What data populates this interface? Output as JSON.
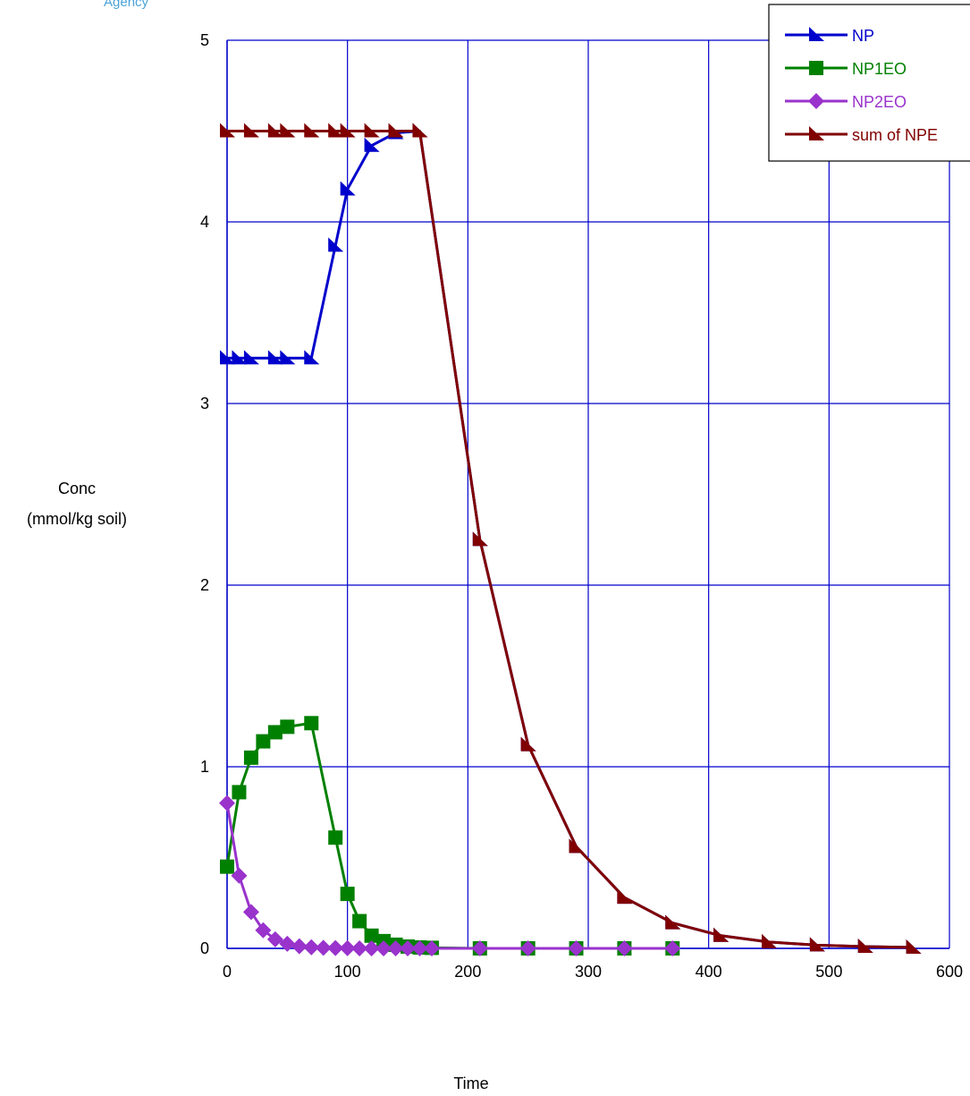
{
  "header": {
    "agency_text": "Agency"
  },
  "colors": {
    "NP": "#0000cc",
    "NP1EO": "#008000",
    "NP2EO": "#9933cc",
    "sum": "#800000",
    "grid": "#0000cc"
  },
  "chart_data": {
    "type": "line",
    "xlabel": "Time",
    "ylabel_lines": [
      "Conc",
      "(mmol/kg soil)"
    ],
    "xlim": [
      0,
      600
    ],
    "ylim": [
      0,
      5
    ],
    "x_ticks": [
      0,
      100,
      200,
      300,
      400,
      500,
      600
    ],
    "y_ticks": [
      0,
      1,
      2,
      3,
      4,
      5
    ],
    "grid": true,
    "legend_position": "top-right",
    "series": [
      {
        "name": "NP",
        "marker": "triangle",
        "color": "#0000cc",
        "points": [
          [
            0,
            3.25
          ],
          [
            10,
            3.25
          ],
          [
            20,
            3.25
          ],
          [
            40,
            3.25
          ],
          [
            50,
            3.25
          ],
          [
            70,
            3.25
          ],
          [
            90,
            3.87
          ],
          [
            100,
            4.18
          ],
          [
            120,
            4.42
          ],
          [
            140,
            4.49
          ],
          [
            160,
            4.5
          ],
          [
            210,
            2.25
          ],
          [
            250,
            1.12
          ],
          [
            290,
            0.56
          ],
          [
            330,
            0.28
          ],
          [
            370,
            0.14
          ],
          [
            410,
            0.07
          ],
          [
            450,
            0.035
          ],
          [
            490,
            0.018
          ],
          [
            530,
            0.01
          ],
          [
            570,
            0.005
          ]
        ]
      },
      {
        "name": "NP1EO",
        "marker": "square",
        "color": "#008000",
        "points": [
          [
            0,
            0.45
          ],
          [
            10,
            0.86
          ],
          [
            20,
            1.05
          ],
          [
            30,
            1.14
          ],
          [
            40,
            1.19
          ],
          [
            50,
            1.22
          ],
          [
            70,
            1.24
          ],
          [
            90,
            0.61
          ],
          [
            100,
            0.3
          ],
          [
            110,
            0.15
          ],
          [
            120,
            0.07
          ],
          [
            130,
            0.04
          ],
          [
            140,
            0.02
          ],
          [
            150,
            0.01
          ],
          [
            160,
            0.005
          ],
          [
            170,
            0.003
          ],
          [
            210,
            0
          ],
          [
            250,
            0
          ],
          [
            290,
            0
          ],
          [
            330,
            0
          ],
          [
            370,
            0
          ]
        ]
      },
      {
        "name": "NP2EO",
        "marker": "diamond",
        "color": "#9933cc",
        "points": [
          [
            0,
            0.8
          ],
          [
            10,
            0.4
          ],
          [
            20,
            0.2
          ],
          [
            30,
            0.1
          ],
          [
            40,
            0.05
          ],
          [
            50,
            0.025
          ],
          [
            60,
            0.012
          ],
          [
            70,
            0.006
          ],
          [
            80,
            0.003
          ],
          [
            90,
            0.002
          ],
          [
            100,
            0.001
          ],
          [
            110,
            0
          ],
          [
            120,
            0
          ],
          [
            130,
            0
          ],
          [
            140,
            0
          ],
          [
            150,
            0
          ],
          [
            160,
            0
          ],
          [
            170,
            0
          ],
          [
            210,
            0
          ],
          [
            250,
            0
          ],
          [
            290,
            0
          ],
          [
            330,
            0
          ],
          [
            370,
            0
          ]
        ]
      },
      {
        "name": "sum of NPE",
        "marker": "triangle",
        "color": "#800000",
        "points": [
          [
            0,
            4.5
          ],
          [
            20,
            4.5
          ],
          [
            40,
            4.5
          ],
          [
            50,
            4.5
          ],
          [
            70,
            4.5
          ],
          [
            90,
            4.5
          ],
          [
            100,
            4.5
          ],
          [
            120,
            4.5
          ],
          [
            140,
            4.5
          ],
          [
            160,
            4.5
          ],
          [
            210,
            2.25
          ],
          [
            250,
            1.12
          ],
          [
            290,
            0.56
          ],
          [
            330,
            0.28
          ],
          [
            370,
            0.14
          ],
          [
            410,
            0.07
          ],
          [
            450,
            0.035
          ],
          [
            490,
            0.018
          ],
          [
            530,
            0.01
          ],
          [
            570,
            0.005
          ]
        ]
      }
    ]
  }
}
